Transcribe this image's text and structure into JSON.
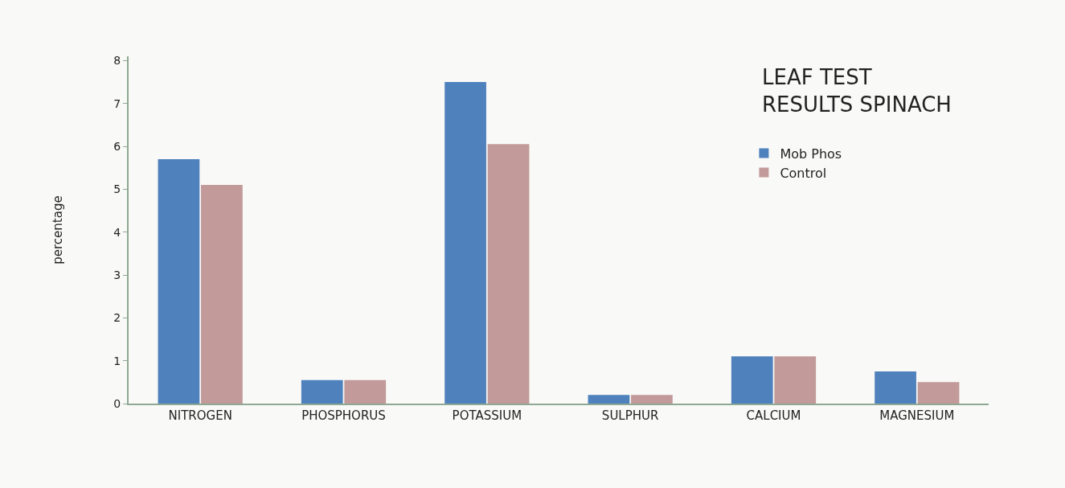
{
  "chart_data": {
    "type": "bar",
    "title": "LEAF TEST\nRESULTS SPINACH",
    "ylabel": "percentage",
    "categories": [
      "NITROGEN",
      "PHOSPHORUS",
      "POTASSIUM",
      "SULPHUR",
      "CALCIUM",
      "MAGNESIUM"
    ],
    "series": [
      {
        "name": "Mob Phos",
        "color": "#4f81bd",
        "values": [
          5.7,
          0.55,
          7.5,
          0.2,
          1.1,
          0.75
        ]
      },
      {
        "name": "Control",
        "color": "#c29a9a",
        "values": [
          5.1,
          0.55,
          6.05,
          0.2,
          1.1,
          0.5
        ]
      }
    ],
    "ylim": [
      0,
      8.1
    ],
    "yticks": [
      0,
      1,
      2,
      3,
      4,
      5,
      6,
      7,
      8
    ],
    "grid": false,
    "legend": "top right"
  }
}
